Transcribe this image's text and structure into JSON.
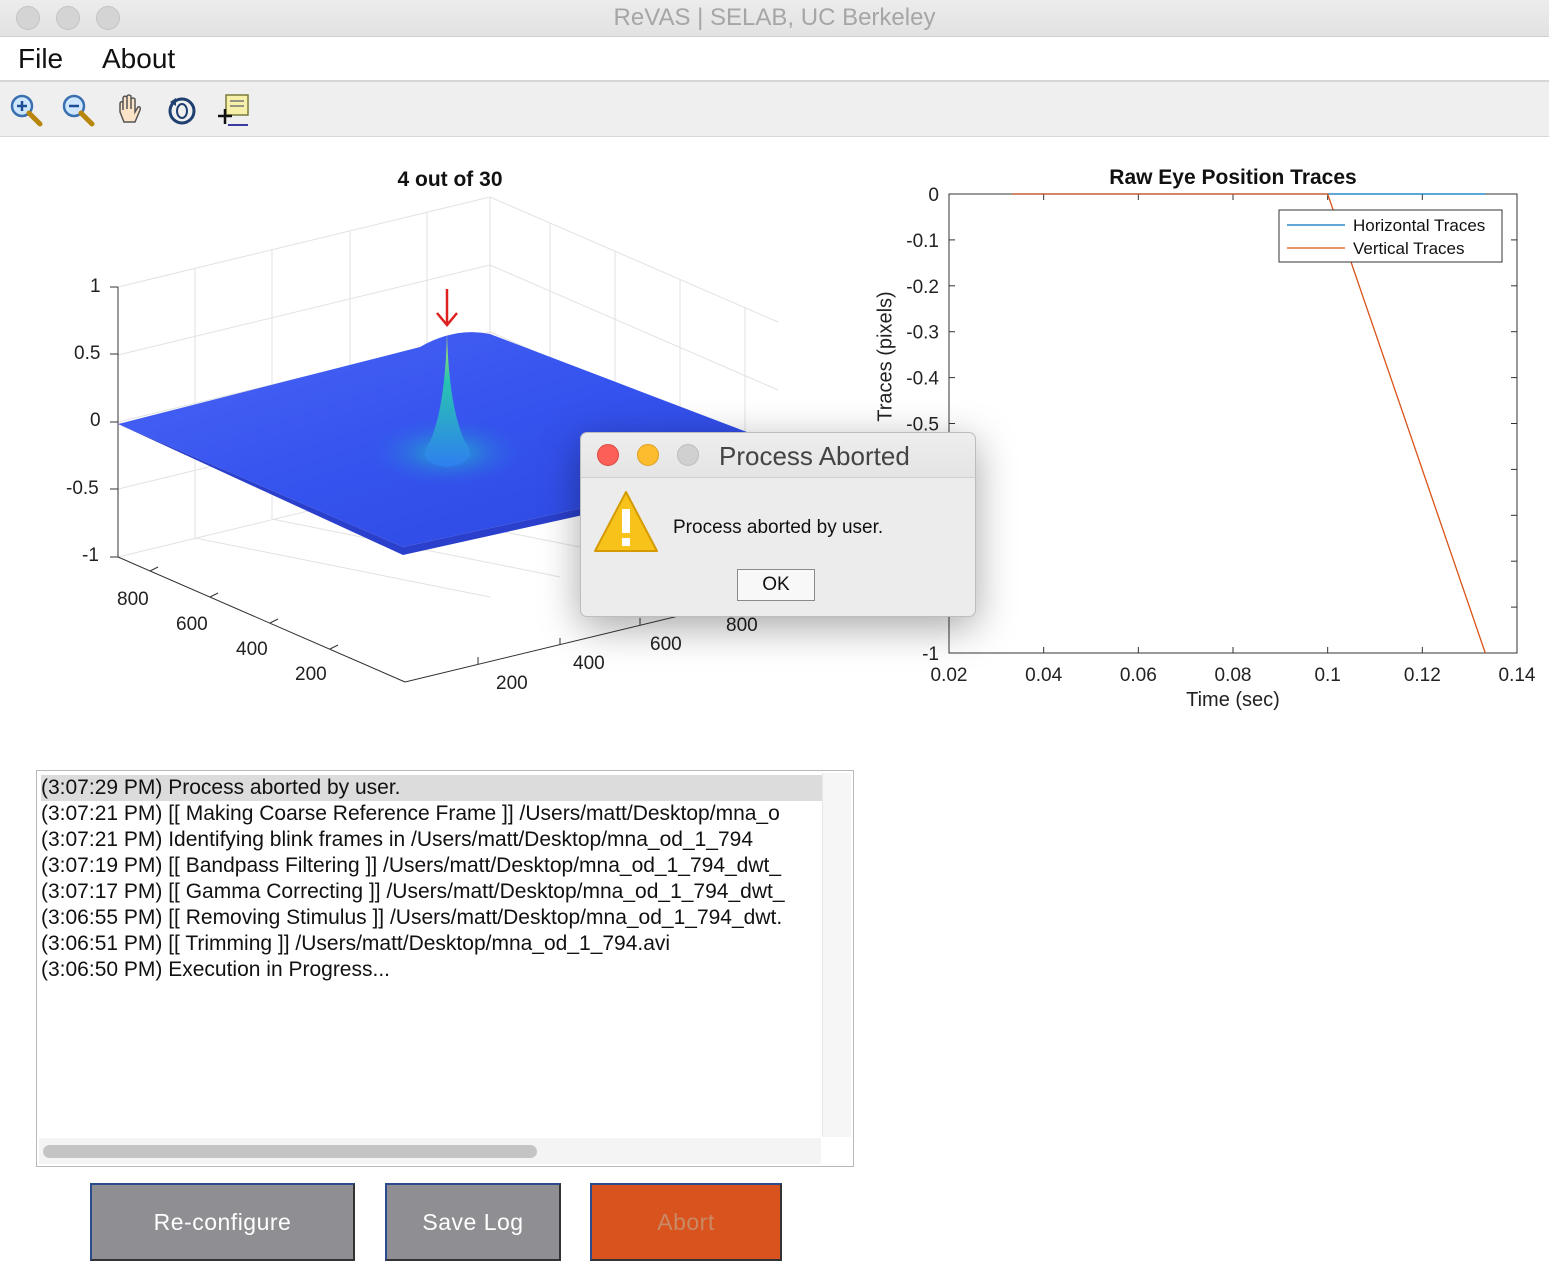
{
  "window": {
    "title": "ReVAS | SELAB, UC Berkeley"
  },
  "menu": {
    "file": "File",
    "about": "About"
  },
  "toolbar": {
    "tools": [
      "zoom-in-icon",
      "zoom-out-icon",
      "pan-hand-icon",
      "rotate-3d-icon",
      "data-cursor-icon"
    ]
  },
  "surface_plot": {
    "title": "4 out of 30",
    "z_ticks": [
      "1",
      "0.5",
      "0",
      "-0.5",
      "-1"
    ],
    "y_ticks": [
      "800",
      "600",
      "400",
      "200"
    ],
    "x_ticks": [
      "200",
      "400",
      "600",
      "800"
    ],
    "peak_marker": "↓"
  },
  "chart_data": {
    "type": "line",
    "title": "Raw Eye Position Traces",
    "xlabel": "Time (sec)",
    "ylabel": "Traces (pixels)",
    "xlim": [
      0.02,
      0.14
    ],
    "ylim": [
      -1,
      0
    ],
    "x_ticks": [
      "0.02",
      "0.04",
      "0.06",
      "0.08",
      "0.1",
      "0.12",
      "0.14"
    ],
    "y_ticks": [
      "0",
      "-0.1",
      "-0.2",
      "-0.3",
      "-0.4",
      "-0.5",
      "-1"
    ],
    "legend_position": "top-right",
    "series": [
      {
        "name": "Horizontal Traces",
        "color": "#0072bd",
        "x": [
          0.0333,
          0.1,
          0.1333
        ],
        "y": [
          0,
          0,
          0
        ]
      },
      {
        "name": "Vertical Traces",
        "color": "#d95319",
        "x": [
          0.0333,
          0.1,
          0.1333
        ],
        "y": [
          0,
          0,
          -1
        ]
      }
    ]
  },
  "log": {
    "lines": [
      "(3:07:29 PM) Process aborted by user.",
      "(3:07:21 PM) [[ Making Coarse Reference Frame ]] /Users/matt/Desktop/mna_o",
      "(3:07:21 PM) Identifying blink frames in /Users/matt/Desktop/mna_od_1_794",
      "(3:07:19 PM) [[ Bandpass Filtering ]] /Users/matt/Desktop/mna_od_1_794_dwt_",
      "(3:07:17 PM) [[ Gamma Correcting ]] /Users/matt/Desktop/mna_od_1_794_dwt_",
      "(3:06:55 PM) [[ Removing Stimulus ]] /Users/matt/Desktop/mna_od_1_794_dwt.",
      "(3:06:51 PM) [[ Trimming ]] /Users/matt/Desktop/mna_od_1_794.avi",
      "(3:06:50 PM) Execution in Progress..."
    ]
  },
  "buttons": {
    "reconfigure": "Re-configure",
    "save_log": "Save Log",
    "abort": "Abort"
  },
  "dialog": {
    "title": "Process Aborted",
    "message": "Process aborted by user.",
    "ok": "OK"
  }
}
